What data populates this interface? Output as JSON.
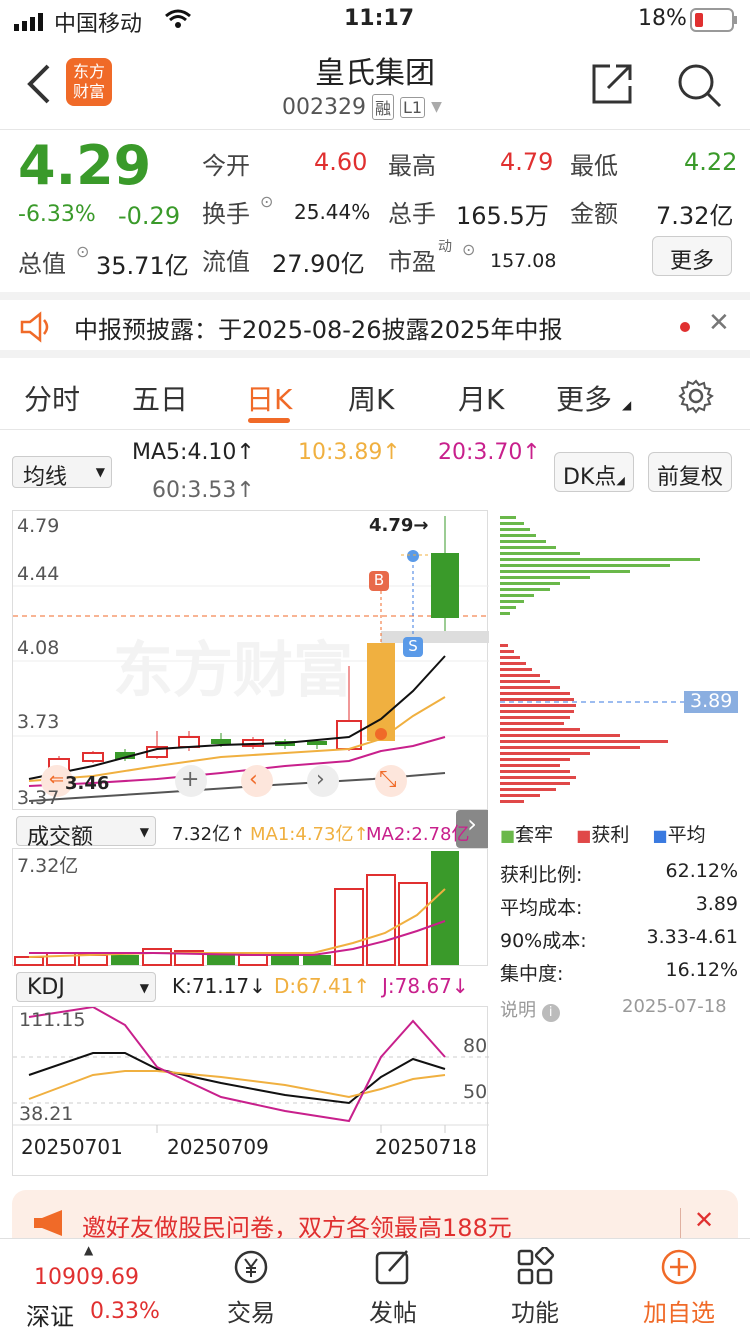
{
  "status_bar": {
    "carrier": "中国移动",
    "time": "11:17",
    "battery": "18%"
  },
  "header": {
    "title": "皇氏集团",
    "code": "002329",
    "badge1": "融",
    "badge2": "L1",
    "logo_line1": "东方",
    "logo_line2": "财富"
  },
  "quote": {
    "price": "4.29",
    "change_pct": "-6.33%",
    "change": "-0.29",
    "open_label": "今开",
    "open": "4.60",
    "high_label": "最高",
    "high": "4.79",
    "low_label": "最低",
    "low": "4.22",
    "turnover_label": "换手",
    "turnover": "25.44%",
    "volume_label": "总手",
    "volume": "165.5万",
    "amount_label": "金额",
    "amount": "7.32亿",
    "mktcap_label": "总值",
    "mktcap": "35.71亿",
    "float_label": "流值",
    "float": "27.90亿",
    "pe_label": "市盈",
    "pe_sup": "动",
    "pe": "157.08",
    "more_label": "更多"
  },
  "notice": {
    "text": "中报预披露：于2025-08-26披露2025年中报"
  },
  "tabs": {
    "t1": "分时",
    "t2": "五日",
    "t3": "日K",
    "t4": "周K",
    "t5": "月K",
    "t6": "更多"
  },
  "ma_bar": {
    "select": "均线",
    "ma5": "MA5:4.10↑",
    "ma10": "10:3.89↑",
    "ma20": "20:3.70↑",
    "ma60": "60:3.53↑",
    "dk": "DK点",
    "fq": "前复权"
  },
  "kline": {
    "y1": "4.79",
    "y2": "4.44",
    "y3": "4.08",
    "y4": "3.73",
    "y5": "3.37",
    "high_mark": "4.79→",
    "low_mark": "3.46",
    "b_tag": "B",
    "s_tag": "S",
    "watermark": "东方财富",
    "chip_price": "3.89"
  },
  "volume_bar": {
    "select": "成交额",
    "v": "7.32亿↑",
    "ma1": "MA1:4.73亿↑",
    "ma2": "MA2:2.78亿",
    "y": "7.32亿"
  },
  "kdj_bar": {
    "select": "KDJ",
    "k": "K:71.17↓",
    "d": "D:67.41↑",
    "j": "J:78.67↓",
    "y_top": "111.15",
    "y_bot": "38.21",
    "l80": "80",
    "l50": "50"
  },
  "dates": {
    "d1": "20250701",
    "d2": "20250709",
    "d3": "20250718"
  },
  "chips": {
    "legend1": "套牢",
    "legend2": "获利",
    "legend3": "平均",
    "rows": [
      {
        "label": "获利比例:",
        "value": "62.12%"
      },
      {
        "label": "平均成本:",
        "value": "3.89"
      },
      {
        "label": "90%成本:",
        "value": "3.33-4.61"
      },
      {
        "label": "集中度:",
        "value": "16.12%"
      }
    ],
    "note_label": "说明",
    "note_date": "2025-07-18"
  },
  "banner": {
    "text": "邀好友做股民问卷，双方各领最高188元"
  },
  "bottom": {
    "index_value": "10909.69",
    "index_name": "深证",
    "index_pct": "0.33%",
    "b1": "交易",
    "b2": "发帖",
    "b3": "功能",
    "b4": "加自选"
  }
}
